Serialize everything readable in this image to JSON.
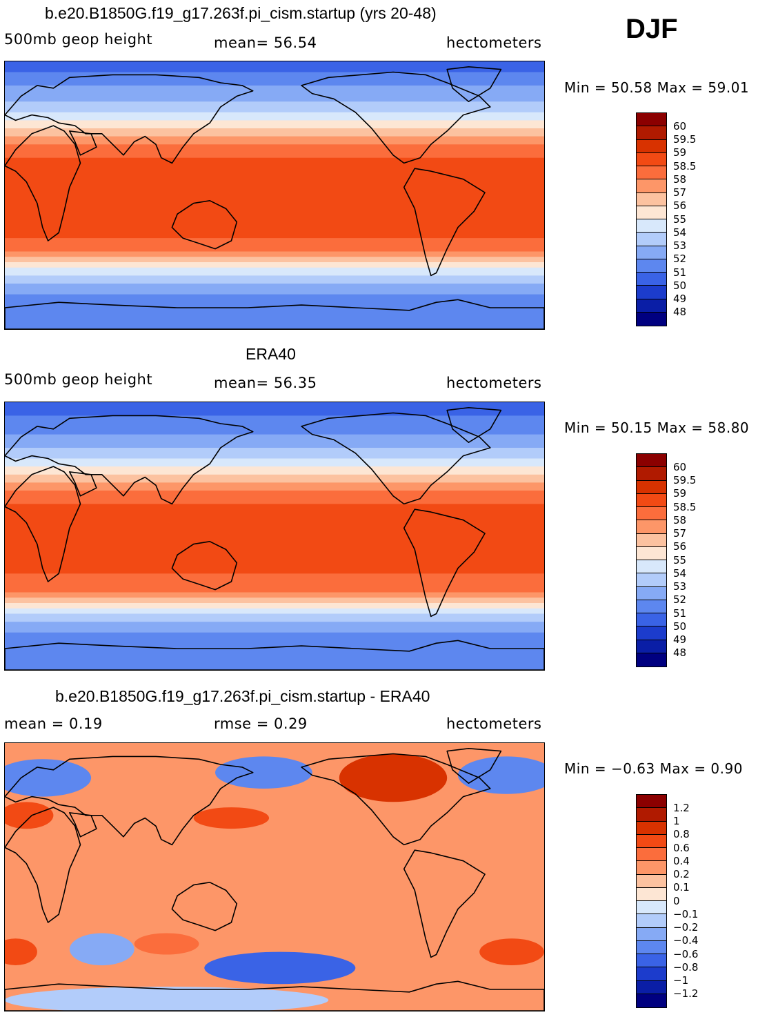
{
  "season": "DJF",
  "panels": [
    {
      "id": "model",
      "title": "b.e20.B1850G.f19_g17.263f.pi_cism.startup (yrs 20-48)",
      "left_label": "500mb geop height",
      "center_label": "mean=  56.54",
      "right_label": "hectometers",
      "minmax": "Min =  50.58 Max =  59.01",
      "colorbar_labels": [
        "60",
        "59.5",
        "59",
        "58.5",
        "58",
        "57",
        "56",
        "55",
        "54",
        "53",
        "52",
        "51",
        "50",
        "49",
        "48"
      ],
      "colors": [
        "#8b0000",
        "#b01a00",
        "#d83200",
        "#f24a14",
        "#fb6d3c",
        "#fd9668",
        "#fcc2a0",
        "#fde6d4",
        "#d8e8fb",
        "#b2ccfa",
        "#86aaf5",
        "#5d87ef",
        "#3a63e6",
        "#1c3ccc",
        "#0a1ea6",
        "#000080"
      ],
      "bands": [
        {
          "level": "50",
          "from": 0.0,
          "to": 0.04
        },
        {
          "level": "51",
          "from": 0.04,
          "to": 0.09
        },
        {
          "level": "52",
          "from": 0.09,
          "to": 0.15
        },
        {
          "level": "53",
          "from": 0.15,
          "to": 0.19
        },
        {
          "level": "54",
          "from": 0.19,
          "to": 0.22
        },
        {
          "level": "55",
          "from": 0.22,
          "to": 0.25
        },
        {
          "level": "56",
          "from": 0.25,
          "to": 0.28
        },
        {
          "level": "57",
          "from": 0.28,
          "to": 0.31
        },
        {
          "level": "58",
          "from": 0.31,
          "to": 0.36
        },
        {
          "level": "58.5",
          "from": 0.36,
          "to": 0.66
        },
        {
          "level": "58",
          "from": 0.66,
          "to": 0.71
        },
        {
          "level": "57",
          "from": 0.71,
          "to": 0.73
        },
        {
          "level": "56",
          "from": 0.73,
          "to": 0.75
        },
        {
          "level": "55",
          "from": 0.75,
          "to": 0.77
        },
        {
          "level": "54",
          "from": 0.77,
          "to": 0.8
        },
        {
          "level": "53",
          "from": 0.8,
          "to": 0.83
        },
        {
          "level": "52",
          "from": 0.83,
          "to": 0.87
        },
        {
          "level": "51",
          "from": 0.87,
          "to": 1.0
        }
      ]
    },
    {
      "id": "obs",
      "title": "ERA40",
      "left_label": "500mb geop height",
      "center_label": "mean=  56.35",
      "right_label": "hectometers",
      "minmax": "Min =  50.15 Max =  58.80",
      "colorbar_labels": [
        "60",
        "59.5",
        "59",
        "58.5",
        "58",
        "57",
        "56",
        "55",
        "54",
        "53",
        "52",
        "51",
        "50",
        "49",
        "48"
      ],
      "colors": [
        "#8b0000",
        "#b01a00",
        "#d83200",
        "#f24a14",
        "#fb6d3c",
        "#fd9668",
        "#fcc2a0",
        "#fde6d4",
        "#d8e8fb",
        "#b2ccfa",
        "#86aaf5",
        "#5d87ef",
        "#3a63e6",
        "#1c3ccc",
        "#0a1ea6",
        "#000080"
      ],
      "bands": [
        {
          "level": "50",
          "from": 0.0,
          "to": 0.05
        },
        {
          "level": "51",
          "from": 0.05,
          "to": 0.12
        },
        {
          "level": "52",
          "from": 0.12,
          "to": 0.17
        },
        {
          "level": "53",
          "from": 0.17,
          "to": 0.21
        },
        {
          "level": "54",
          "from": 0.21,
          "to": 0.24
        },
        {
          "level": "55",
          "from": 0.24,
          "to": 0.27
        },
        {
          "level": "56",
          "from": 0.27,
          "to": 0.3
        },
        {
          "level": "57",
          "from": 0.3,
          "to": 0.33
        },
        {
          "level": "58",
          "from": 0.33,
          "to": 0.38
        },
        {
          "level": "58.5",
          "from": 0.38,
          "to": 0.64
        },
        {
          "level": "58",
          "from": 0.64,
          "to": 0.71
        },
        {
          "level": "57",
          "from": 0.71,
          "to": 0.73
        },
        {
          "level": "56",
          "from": 0.73,
          "to": 0.75
        },
        {
          "level": "55",
          "from": 0.75,
          "to": 0.77
        },
        {
          "level": "54",
          "from": 0.77,
          "to": 0.79
        },
        {
          "level": "53",
          "from": 0.79,
          "to": 0.82
        },
        {
          "level": "52",
          "from": 0.82,
          "to": 0.86
        },
        {
          "level": "51",
          "from": 0.86,
          "to": 1.0
        }
      ]
    },
    {
      "id": "diff",
      "title": "b.e20.B1850G.f19_g17.263f.pi_cism.startup - ERA40",
      "left_label": "mean =   0.19",
      "center_label": "rmse =   0.29",
      "right_label": "hectometers",
      "minmax": "Min =  −0.63 Max =   0.90",
      "colorbar_labels": [
        "1.2",
        "1",
        "0.8",
        "0.6",
        "0.4",
        "0.2",
        "0.1",
        "0",
        "−0.1",
        "−0.2",
        "−0.4",
        "−0.6",
        "−0.8",
        "−1",
        "−1.2"
      ],
      "colors": [
        "#8b0000",
        "#b01a00",
        "#d83200",
        "#f24a14",
        "#fb6d3c",
        "#fd9668",
        "#fcc2a0",
        "#fde6d4",
        "#d8e8fb",
        "#b2ccfa",
        "#86aaf5",
        "#5d87ef",
        "#3a63e6",
        "#1c3ccc",
        "#0a1ea6",
        "#000080"
      ],
      "background_level": "0.2",
      "anomalies": [
        {
          "level": "-0.4",
          "lon_frac": 0.07,
          "lat_frac": 0.13,
          "rx_frac": 0.09,
          "ry_frac": 0.07
        },
        {
          "level": "-0.4",
          "lon_frac": 0.48,
          "lat_frac": 0.11,
          "rx_frac": 0.09,
          "ry_frac": 0.06
        },
        {
          "level": "-0.4",
          "lon_frac": 0.93,
          "lat_frac": 0.12,
          "rx_frac": 0.09,
          "ry_frac": 0.07
        },
        {
          "level": "0.8",
          "lon_frac": 0.72,
          "lat_frac": 0.13,
          "rx_frac": 0.1,
          "ry_frac": 0.09
        },
        {
          "level": "0.6",
          "lon_frac": 0.42,
          "lat_frac": 0.28,
          "rx_frac": 0.07,
          "ry_frac": 0.04
        },
        {
          "level": "0.6",
          "lon_frac": 0.04,
          "lat_frac": 0.27,
          "rx_frac": 0.05,
          "ry_frac": 0.05
        },
        {
          "level": "-0.6",
          "lon_frac": 0.51,
          "lat_frac": 0.84,
          "rx_frac": 0.14,
          "ry_frac": 0.06
        },
        {
          "level": "-0.2",
          "lon_frac": 0.18,
          "lat_frac": 0.77,
          "rx_frac": 0.06,
          "ry_frac": 0.06
        },
        {
          "level": "-0.1",
          "lon_frac": 0.3,
          "lat_frac": 0.96,
          "rx_frac": 0.3,
          "ry_frac": 0.05
        },
        {
          "level": "0.6",
          "lon_frac": 0.94,
          "lat_frac": 0.78,
          "rx_frac": 0.06,
          "ry_frac": 0.05
        },
        {
          "level": "0.6",
          "lon_frac": 0.02,
          "lat_frac": 0.78,
          "rx_frac": 0.04,
          "ry_frac": 0.05
        },
        {
          "level": "0.4",
          "lon_frac": 0.3,
          "lat_frac": 0.75,
          "rx_frac": 0.06,
          "ry_frac": 0.04
        }
      ]
    }
  ]
}
